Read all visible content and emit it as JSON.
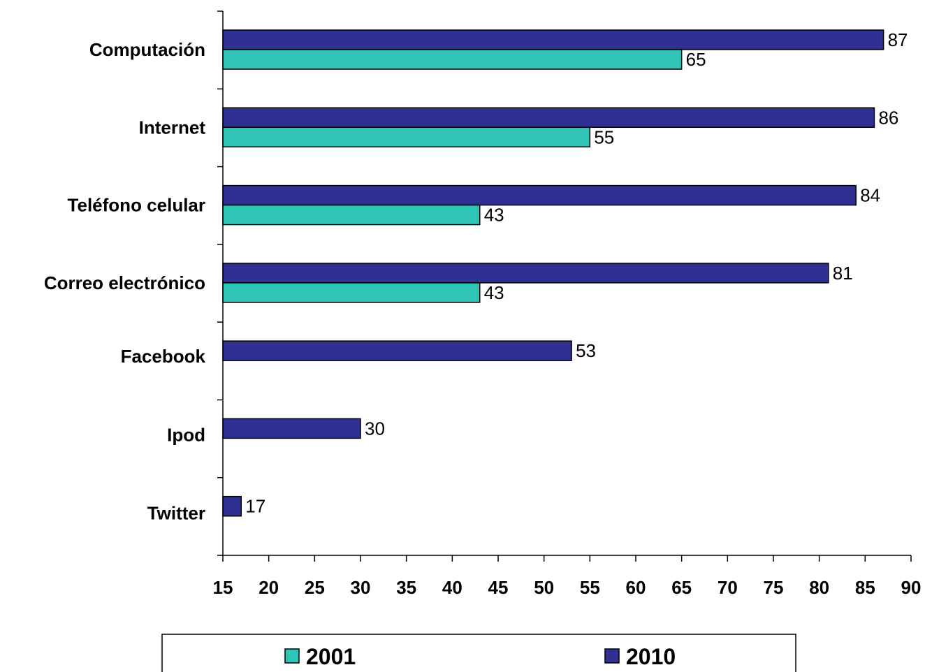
{
  "chart_data": {
    "type": "bar",
    "orientation": "horizontal",
    "categories": [
      "Computación",
      "Internet",
      "Teléfono celular",
      "Correo electrónico",
      "Facebook",
      "Ipod",
      "Twitter"
    ],
    "series": [
      {
        "name": "2010",
        "color": "#2e3192",
        "values": [
          87,
          86,
          84,
          81,
          53,
          30,
          17
        ]
      },
      {
        "name": "2001",
        "color": "#2ec4b6",
        "values": [
          65,
          55,
          43,
          43,
          null,
          null,
          null
        ]
      }
    ],
    "xlim": [
      15,
      90
    ],
    "xticks": [
      15,
      20,
      25,
      30,
      35,
      40,
      45,
      50,
      55,
      60,
      65,
      70,
      75,
      80,
      85,
      90
    ],
    "legend": {
      "position": "bottom",
      "entries": [
        "2001",
        "2010"
      ]
    },
    "grid": false
  }
}
